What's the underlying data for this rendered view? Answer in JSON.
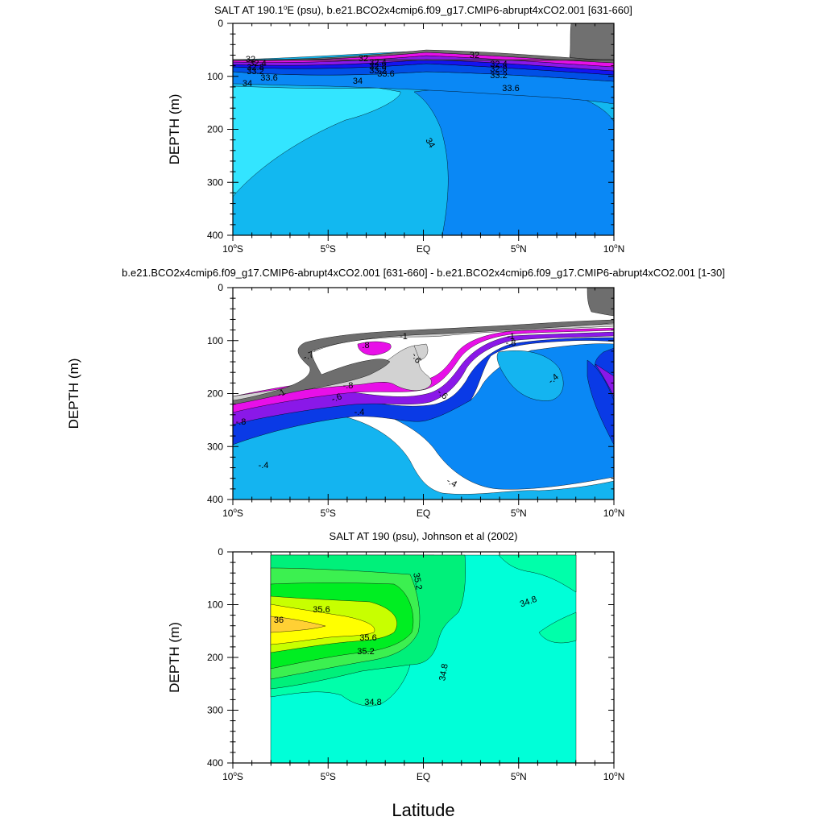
{
  "chart_data": [
    {
      "type": "contour",
      "title": "SALT AT 190.1°E (psu), b.e21.BCO2x4cmip6.f09_g17.CMIP6-abrupt4xCO2.001 [631-660]",
      "title_parts": [
        "SALT AT 190.1",
        "o",
        "E (psu), b.e21.BCO2x4cmip6.f09_g17.CMIP6-abrupt4xCO2.001 [631-660]"
      ],
      "ylabel": "DEPTH (m)",
      "xlabel": "",
      "xlim": [
        -10,
        10
      ],
      "ylim": [
        0,
        400
      ],
      "y_reversed": true,
      "xticks": [
        {
          "value": -10,
          "label": "10",
          "suffix": "S"
        },
        {
          "value": -5,
          "label": "5",
          "suffix": "S"
        },
        {
          "value": 0,
          "label": "EQ",
          "suffix": ""
        },
        {
          "value": 5,
          "label": "5",
          "suffix": "N"
        },
        {
          "value": 10,
          "label": "10",
          "suffix": "N"
        }
      ],
      "yticks": [
        "0",
        "100",
        "200",
        "300",
        "400"
      ],
      "contour_labels": [
        "32",
        "32.4",
        "32.8",
        "33.2",
        "33.6",
        "34",
        "32",
        "32.4",
        "32.8",
        "33.2",
        "33.6",
        "34",
        "34",
        "32",
        "32.4",
        "32.8",
        "33.2",
        "33.6"
      ],
      "colors": {
        "c34_low": "#33e5ff",
        "c34_high": "#12b8f0",
        "c33_6": "#0a88f5",
        "c33_2": "#0050e6",
        "c32_8": "#1414f0",
        "c32_4": "#8a18e8",
        "c32": "#e810e8",
        "c_low": "#707070"
      }
    },
    {
      "type": "contour",
      "title": "b.e21.BCO2x4cmip6.f09_g17.CMIP6-abrupt4xCO2.001 [631-660] - b.e21.BCO2x4cmip6.f09_g17.CMIP6-abrupt4xCO2.001 [1-30]",
      "ylabel": "DEPTH (m)",
      "xlabel": "",
      "xlim": [
        -10,
        10
      ],
      "ylim": [
        0,
        400
      ],
      "y_reversed": true,
      "xticks": [
        {
          "value": -10,
          "label": "10",
          "suffix": "S"
        },
        {
          "value": -5,
          "label": "5",
          "suffix": "S"
        },
        {
          "value": 0,
          "label": "EQ",
          "suffix": ""
        },
        {
          "value": 5,
          "label": "5",
          "suffix": "N"
        },
        {
          "value": 10,
          "label": "10",
          "suffix": "N"
        }
      ],
      "yticks": [
        "0",
        "100",
        "200",
        "300",
        "400"
      ],
      "contour_labels": [
        ".8",
        "-1",
        "-.7",
        "-.6",
        "-1",
        "-.8",
        "-.6",
        "-.4",
        "-.8",
        "-.4",
        "-.4",
        "-1",
        "-.8",
        "-.4",
        "-.6"
      ],
      "colors": {
        "d_lt_m04": "#14b4f0",
        "d_m06": "#0a88f5",
        "d_m08": "#0a3ae6",
        "d_m1": "#8a18e8",
        "d_m12": "#e810e8",
        "d_pos": "#d2d2d2",
        "d_grey": "#6e6e6e"
      }
    },
    {
      "type": "contour",
      "title": "SALT AT 190 (psu), Johnson et al (2002)",
      "ylabel": "DEPTH (m)",
      "xlabel": "Latitude",
      "xlim": [
        -10,
        10
      ],
      "ylim": [
        0,
        400
      ],
      "y_reversed": true,
      "xticks": [
        {
          "value": -10,
          "label": "10",
          "suffix": "S"
        },
        {
          "value": -5,
          "label": "5",
          "suffix": "S"
        },
        {
          "value": 0,
          "label": "EQ",
          "suffix": ""
        },
        {
          "value": 5,
          "label": "5",
          "suffix": "N"
        },
        {
          "value": 10,
          "label": "10",
          "suffix": "N"
        }
      ],
      "yticks": [
        "0",
        "100",
        "200",
        "300",
        "400"
      ],
      "contour_labels": [
        "35.2",
        "35.6",
        "36",
        "35.6",
        "35.2",
        "34.8",
        "34.8",
        "34.8"
      ],
      "colors": {
        "j348": "#00ffd8",
        "j35": "#00ffaa",
        "j352": "#00f07a",
        "j354": "#3cf050",
        "j356": "#00ee22",
        "j358": "#c8ff00",
        "j36": "#ffff00",
        "j362": "#ffd034"
      }
    }
  ]
}
